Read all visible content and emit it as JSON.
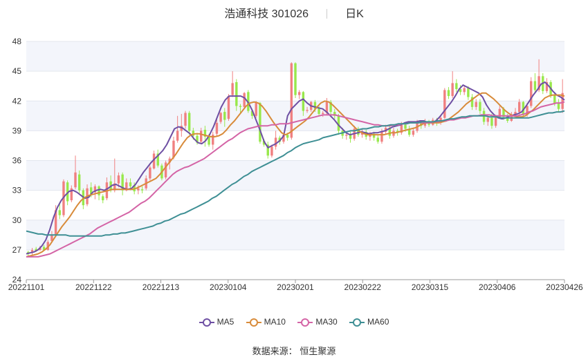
{
  "title": {
    "name": "浩通科技 301026",
    "period": "日K"
  },
  "source": {
    "label": "数据来源：",
    "name": "恒生聚源"
  },
  "colors": {
    "up": "#F08080",
    "down": "#98E84B",
    "ma5": "#6E4FA3",
    "ma10": "#D88B3A",
    "ma30": "#D464A6",
    "ma60": "#3E8F94",
    "band": "#F3F5FB",
    "grid": "#E3E6EE"
  },
  "chart_data": {
    "type": "candlestick",
    "y_ticks": [
      "48",
      "45",
      "42",
      "39",
      "36",
      "33",
      "30",
      "27",
      "24"
    ],
    "ylim": [
      24,
      48
    ],
    "x_ticks": [
      "20221101",
      "20221122",
      "20221213",
      "20230104",
      "20230201",
      "20230222",
      "20230315",
      "20230406",
      "20230426"
    ],
    "series": [
      {
        "name": "MA5",
        "values": [
          26.6,
          26.7,
          26.8,
          27.0,
          27.4,
          28.0,
          29.0,
          30.3,
          31.3,
          32.0,
          32.5,
          32.9,
          33.0,
          32.8,
          32.5,
          32.2,
          32.3,
          32.8,
          33.0,
          33.1,
          33.0,
          33.2,
          33.5,
          33.6,
          33.4,
          33.2,
          33.1,
          33.2,
          33.6,
          34.2,
          34.8,
          35.3,
          35.8,
          36.2,
          36.6,
          37.0,
          37.6,
          38.4,
          39.2,
          39.4,
          39.3,
          39.0,
          38.7,
          38.2,
          37.8,
          37.7,
          38.0,
          38.6,
          39.4,
          40.4,
          41.4,
          42.1,
          42.5,
          42.5,
          42.5,
          42.5,
          42.3,
          41.8,
          41.0,
          40.0,
          39.0,
          37.9,
          37.3,
          37.5,
          37.7,
          38.0,
          38.5,
          40.5,
          41.2,
          41.6,
          42.0,
          42.2,
          41.8,
          41.5,
          41.4,
          41.3,
          41.2,
          40.9,
          40.5,
          40.1,
          39.6,
          39.2,
          38.8,
          38.6,
          38.7,
          38.8,
          38.9,
          38.8,
          38.7,
          38.8,
          38.8,
          38.9,
          39.0,
          39.2,
          39.4,
          39.5,
          39.6,
          39.8,
          39.9,
          39.9,
          39.9,
          40.0,
          40.0,
          39.8,
          39.8,
          40.0,
          40.4,
          40.9,
          41.4,
          41.9,
          42.5,
          43.2,
          43.6,
          43.4,
          43.2,
          43.0,
          42.8,
          42.4,
          41.6,
          41.0,
          40.6,
          40.3,
          40.2,
          40.3,
          40.5,
          40.6,
          40.7,
          40.9,
          41.4,
          42.0,
          42.6,
          43.1,
          43.7,
          43.9,
          43.5,
          43.0,
          42.6,
          42.4,
          42.1
        ]
      },
      {
        "name": "MA10",
        "values": [
          26.3,
          26.4,
          26.5,
          26.6,
          26.8,
          27.1,
          27.5,
          28.1,
          28.7,
          29.3,
          29.8,
          30.3,
          30.9,
          31.5,
          32.0,
          32.3,
          32.5,
          32.6,
          32.7,
          32.8,
          32.9,
          33.0,
          33.1,
          33.1,
          33.1,
          33.1,
          33.1,
          33.1,
          33.2,
          33.4,
          33.6,
          33.8,
          34.0,
          34.2,
          34.6,
          35.1,
          35.6,
          36.1,
          36.6,
          37.2,
          37.8,
          38.3,
          38.6,
          38.7,
          38.7,
          38.6,
          38.5,
          38.4,
          38.4,
          38.5,
          38.7,
          39.1,
          39.6,
          40.0,
          40.5,
          41.0,
          41.5,
          41.8,
          41.9,
          41.8,
          41.5,
          41.0,
          40.4,
          39.8,
          39.3,
          38.8,
          38.6,
          38.8,
          39.1,
          39.4,
          39.7,
          40.0,
          40.4,
          40.9,
          41.4,
          41.8,
          42.0,
          41.9,
          41.6,
          41.2,
          40.8,
          40.4,
          40.0,
          39.6,
          39.2,
          38.9,
          38.7,
          38.6,
          38.6,
          38.6,
          38.6,
          38.6,
          38.7,
          38.8,
          38.8,
          38.9,
          39.0,
          39.1,
          39.2,
          39.3,
          39.5,
          39.7,
          39.8,
          39.8,
          39.8,
          39.8,
          39.9,
          40.0,
          40.3,
          40.6,
          40.9,
          41.3,
          41.7,
          42.0,
          42.3,
          42.6,
          42.8,
          42.8,
          42.5,
          42.2,
          41.8,
          41.4,
          41.0,
          40.7,
          40.5,
          40.4,
          40.4,
          40.5,
          40.8,
          41.1,
          41.5,
          41.9,
          42.3,
          42.5,
          42.6,
          42.6,
          42.6,
          42.5
        ]
      },
      {
        "name": "MA30",
        "values": [
          26.3,
          26.3,
          26.3,
          26.3,
          26.4,
          26.5,
          26.6,
          26.8,
          27.0,
          27.2,
          27.4,
          27.6,
          27.8,
          28.0,
          28.2,
          28.4,
          28.6,
          28.9,
          29.2,
          29.4,
          29.6,
          29.8,
          30.0,
          30.2,
          30.4,
          30.6,
          30.8,
          31.1,
          31.4,
          31.7,
          31.9,
          32.2,
          32.6,
          33.0,
          33.4,
          33.8,
          34.2,
          34.6,
          34.9,
          35.1,
          35.3,
          35.4,
          35.6,
          35.8,
          36.0,
          36.2,
          36.5,
          36.8,
          37.1,
          37.4,
          37.7,
          38.0,
          38.2,
          38.5,
          38.8,
          39.0,
          39.2,
          39.3,
          39.4,
          39.5,
          39.5,
          39.5,
          39.6,
          39.6,
          39.7,
          39.7,
          39.7,
          39.8,
          39.9,
          40.0,
          40.1,
          40.2,
          40.3,
          40.4,
          40.5,
          40.6,
          40.6,
          40.6,
          40.6,
          40.5,
          40.4,
          40.3,
          40.2,
          40.1,
          40.0,
          39.9,
          39.8,
          39.7,
          39.6,
          39.6,
          39.5,
          39.5,
          39.5,
          39.6,
          39.6,
          39.7,
          39.7,
          39.8,
          39.8,
          39.8,
          39.8,
          39.8,
          39.8,
          39.9,
          39.9,
          40.0,
          40.0,
          40.1,
          40.1,
          40.2,
          40.3,
          40.3,
          40.4,
          40.5,
          40.5,
          40.6,
          40.6,
          40.6,
          40.5,
          40.5,
          40.5,
          40.5,
          40.5,
          40.5,
          40.5,
          40.6,
          40.7,
          40.9,
          41.0,
          41.2,
          41.4,
          41.5,
          41.6,
          41.7,
          41.8,
          41.8,
          41.9
        ]
      },
      {
        "name": "MA60",
        "values": [
          28.9,
          28.8,
          28.7,
          28.6,
          28.6,
          28.5,
          28.5,
          28.5,
          28.5,
          28.5,
          28.5,
          28.4,
          28.4,
          28.4,
          28.4,
          28.4,
          28.4,
          28.4,
          28.4,
          28.4,
          28.5,
          28.5,
          28.6,
          28.6,
          28.7,
          28.7,
          28.8,
          28.9,
          29.0,
          29.1,
          29.2,
          29.3,
          29.4,
          29.6,
          29.7,
          29.9,
          30.0,
          30.2,
          30.4,
          30.6,
          30.7,
          30.9,
          31.1,
          31.3,
          31.5,
          31.7,
          31.9,
          32.2,
          32.4,
          32.7,
          33.0,
          33.3,
          33.6,
          33.8,
          34.1,
          34.4,
          34.6,
          34.9,
          35.1,
          35.3,
          35.5,
          35.7,
          35.9,
          36.1,
          36.3,
          36.5,
          36.8,
          37.0,
          37.3,
          37.5,
          37.7,
          37.8,
          37.9,
          38.0,
          38.1,
          38.3,
          38.4,
          38.5,
          38.6,
          38.7,
          38.8,
          38.9,
          39.0,
          39.0,
          39.1,
          39.2,
          39.2,
          39.3,
          39.4,
          39.4,
          39.5,
          39.5,
          39.6,
          39.6,
          39.7,
          39.7,
          39.7,
          39.8,
          39.8,
          39.8,
          39.9,
          39.9,
          39.9,
          39.9,
          40.0,
          40.0,
          40.1,
          40.2,
          40.2,
          40.3,
          40.4,
          40.4,
          40.5,
          40.5,
          40.5,
          40.5,
          40.5,
          40.4,
          40.4,
          40.4,
          40.3,
          40.3,
          40.3,
          40.3,
          40.3,
          40.3,
          40.3,
          40.3,
          40.4,
          40.5,
          40.6,
          40.7,
          40.8,
          40.8,
          40.9,
          40.9,
          41.0
        ]
      }
    ],
    "candles": [
      [
        26.8,
        26.6,
        26.9,
        26.4
      ],
      [
        26.7,
        27.0,
        27.2,
        26.5
      ],
      [
        27.1,
        26.9,
        27.3,
        26.8
      ],
      [
        27.0,
        27.2,
        27.4,
        26.9
      ],
      [
        27.3,
        27.0,
        27.5,
        26.9
      ],
      [
        27.0,
        27.8,
        28.0,
        26.9
      ],
      [
        27.9,
        28.5,
        28.9,
        27.7
      ],
      [
        28.5,
        31.0,
        31.5,
        28.3
      ],
      [
        31.0,
        30.5,
        31.8,
        30.1
      ],
      [
        30.5,
        33.9,
        34.1,
        30.3
      ],
      [
        33.8,
        31.9,
        34.0,
        31.5
      ],
      [
        32.0,
        33.2,
        33.5,
        31.8
      ],
      [
        33.3,
        34.8,
        36.5,
        33.1
      ],
      [
        34.6,
        33.0,
        35.0,
        32.6
      ],
      [
        33.0,
        31.5,
        33.2,
        31.1
      ],
      [
        31.6,
        33.2,
        33.6,
        31.4
      ],
      [
        33.3,
        32.6,
        33.8,
        32.3
      ],
      [
        32.8,
        33.4,
        33.6,
        32.1
      ],
      [
        33.4,
        32.5,
        33.5,
        32.0
      ],
      [
        32.4,
        32.0,
        32.6,
        31.7
      ],
      [
        32.2,
        33.8,
        34.3,
        32.0
      ],
      [
        33.9,
        33.0,
        34.5,
        32.8
      ],
      [
        33.0,
        33.7,
        36.2,
        32.8
      ],
      [
        33.7,
        34.5,
        34.8,
        33.3
      ],
      [
        34.6,
        33.0,
        34.8,
        32.5
      ],
      [
        33.0,
        33.8,
        34.2,
        32.9
      ],
      [
        33.8,
        33.4,
        34.2,
        33.0
      ],
      [
        33.5,
        32.9,
        33.8,
        32.6
      ],
      [
        33.0,
        33.2,
        33.5,
        32.6
      ],
      [
        33.1,
        33.0,
        33.4,
        32.7
      ],
      [
        33.2,
        34.2,
        34.5,
        33.0
      ],
      [
        34.2,
        35.3,
        35.5,
        34.0
      ],
      [
        35.2,
        36.7,
        37.0,
        35.1
      ],
      [
        36.7,
        35.5,
        37.1,
        35.3
      ],
      [
        35.5,
        34.2,
        35.7,
        34.0
      ],
      [
        34.3,
        35.8,
        36.0,
        34.1
      ],
      [
        35.8,
        36.2,
        36.4,
        35.1
      ],
      [
        36.3,
        38.0,
        38.4,
        36.1
      ],
      [
        38.0,
        39.0,
        40.5,
        37.8
      ],
      [
        39.0,
        39.5,
        40.7,
        38.4
      ],
      [
        39.5,
        40.8,
        41.0,
        39.2
      ],
      [
        40.8,
        39.0,
        41.0,
        38.6
      ],
      [
        39.0,
        38.5,
        39.3,
        38.1
      ],
      [
        38.5,
        37.8,
        38.8,
        37.6
      ],
      [
        37.9,
        39.0,
        39.3,
        37.7
      ],
      [
        39.1,
        38.4,
        39.5,
        37.4
      ],
      [
        38.4,
        37.6,
        38.7,
        37.4
      ],
      [
        37.6,
        38.6,
        38.9,
        37.1
      ],
      [
        38.7,
        39.8,
        40.2,
        38.5
      ],
      [
        39.9,
        40.8,
        40.9,
        39.7
      ],
      [
        40.9,
        40.1,
        41.3,
        39.4
      ],
      [
        40.2,
        42.5,
        42.7,
        40.0
      ],
      [
        42.6,
        43.8,
        45.0,
        42.4
      ],
      [
        43.9,
        41.5,
        44.2,
        41.0
      ],
      [
        41.5,
        41.4,
        41.7,
        40.8
      ],
      [
        41.4,
        42.8,
        42.9,
        41.2
      ],
      [
        42.9,
        41.0,
        43.1,
        40.8
      ],
      [
        41.0,
        40.5,
        41.2,
        40.2
      ],
      [
        40.5,
        41.8,
        42.0,
        40.3
      ],
      [
        41.8,
        37.9,
        41.9,
        37.7
      ],
      [
        38.0,
        37.6,
        38.2,
        37.4
      ],
      [
        37.6,
        36.5,
        37.9,
        36.2
      ],
      [
        36.5,
        37.4,
        37.6,
        36.3
      ],
      [
        37.4,
        38.3,
        39.0,
        37.1
      ],
      [
        38.3,
        37.9,
        38.5,
        37.6
      ],
      [
        37.9,
        38.6,
        38.8,
        37.7
      ],
      [
        38.6,
        38.3,
        38.8,
        38.0
      ],
      [
        38.3,
        45.8,
        45.9,
        38.1
      ],
      [
        45.8,
        42.6,
        45.9,
        42.3
      ],
      [
        42.6,
        42.9,
        43.1,
        42.2
      ],
      [
        42.9,
        41.0,
        43.0,
        40.5
      ],
      [
        41.0,
        41.1,
        41.4,
        40.8
      ],
      [
        41.1,
        41.9,
        42.0,
        40.9
      ],
      [
        41.9,
        41.2,
        42.1,
        40.9
      ],
      [
        41.3,
        40.7,
        41.5,
        40.5
      ],
      [
        40.7,
        40.8,
        41.0,
        40.4
      ],
      [
        40.8,
        41.9,
        42.3,
        40.6
      ],
      [
        41.9,
        40.9,
        42.1,
        40.6
      ],
      [
        40.9,
        40.5,
        41.2,
        40.2
      ],
      [
        40.5,
        39.0,
        40.7,
        38.6
      ],
      [
        39.0,
        38.5,
        39.3,
        38.2
      ],
      [
        38.5,
        38.6,
        38.8,
        38.1
      ],
      [
        38.6,
        38.2,
        38.9,
        37.8
      ],
      [
        38.2,
        39.2,
        39.5,
        38.0
      ],
      [
        39.2,
        38.6,
        39.4,
        38.4
      ],
      [
        38.6,
        38.9,
        39.2,
        38.3
      ],
      [
        38.9,
        38.4,
        39.1,
        38.1
      ],
      [
        38.4,
        38.7,
        38.9,
        38.0
      ],
      [
        38.7,
        38.3,
        38.9,
        38.0
      ],
      [
        38.3,
        37.9,
        38.6,
        37.7
      ],
      [
        37.9,
        38.9,
        39.2,
        37.7
      ],
      [
        38.9,
        39.3,
        39.6,
        38.7
      ],
      [
        39.3,
        38.5,
        39.5,
        38.2
      ],
      [
        38.5,
        39.0,
        39.3,
        38.3
      ],
      [
        39.0,
        38.8,
        39.2,
        38.5
      ],
      [
        38.8,
        39.6,
        39.9,
        38.6
      ],
      [
        39.6,
        39.2,
        39.8,
        38.9
      ],
      [
        39.2,
        38.6,
        39.5,
        38.4
      ],
      [
        38.6,
        39.0,
        39.3,
        38.4
      ],
      [
        39.0,
        39.8,
        40.1,
        38.8
      ],
      [
        39.8,
        39.5,
        40.0,
        39.2
      ],
      [
        39.5,
        39.9,
        40.2,
        39.3
      ],
      [
        39.9,
        39.6,
        40.1,
        39.4
      ],
      [
        39.6,
        40.1,
        40.3,
        39.5
      ],
      [
        40.1,
        39.8,
        40.3,
        39.5
      ],
      [
        39.8,
        40.3,
        40.6,
        39.6
      ],
      [
        40.3,
        43.1,
        43.3,
        40.2
      ],
      [
        43.1,
        42.5,
        43.4,
        42.2
      ],
      [
        42.5,
        43.8,
        45.0,
        42.3
      ],
      [
        43.8,
        43.2,
        44.2,
        42.9
      ],
      [
        43.2,
        42.9,
        43.6,
        42.6
      ],
      [
        42.9,
        43.3,
        43.6,
        42.6
      ],
      [
        43.3,
        42.4,
        43.5,
        42.1
      ],
      [
        42.4,
        41.4,
        42.7,
        41.1
      ],
      [
        41.4,
        41.9,
        42.2,
        41.1
      ],
      [
        41.9,
        41.0,
        42.2,
        40.7
      ],
      [
        41.0,
        39.9,
        41.3,
        39.6
      ],
      [
        39.9,
        40.3,
        40.6,
        39.5
      ],
      [
        40.3,
        39.5,
        40.7,
        39.2
      ],
      [
        39.5,
        40.4,
        40.6,
        39.3
      ],
      [
        40.4,
        41.2,
        41.5,
        40.2
      ],
      [
        41.2,
        40.4,
        41.4,
        40.1
      ],
      [
        40.4,
        40.0,
        40.7,
        39.8
      ],
      [
        40.0,
        40.6,
        40.9,
        39.9
      ],
      [
        40.6,
        40.9,
        41.3,
        40.4
      ],
      [
        40.9,
        41.9,
        42.2,
        40.6
      ],
      [
        41.9,
        40.6,
        42.0,
        40.3
      ],
      [
        40.6,
        41.5,
        41.8,
        40.4
      ],
      [
        41.5,
        44.0,
        44.4,
        41.3
      ],
      [
        44.0,
        43.1,
        44.8,
        42.8
      ],
      [
        43.1,
        44.5,
        46.2,
        42.9
      ],
      [
        44.5,
        43.0,
        44.8,
        42.7
      ],
      [
        43.0,
        43.9,
        44.3,
        42.8
      ],
      [
        43.9,
        42.6,
        44.1,
        42.3
      ],
      [
        42.6,
        41.8,
        42.9,
        41.5
      ],
      [
        41.8,
        41.2,
        42.2,
        40.9
      ],
      [
        41.2,
        42.8,
        44.2,
        40.8
      ]
    ]
  }
}
